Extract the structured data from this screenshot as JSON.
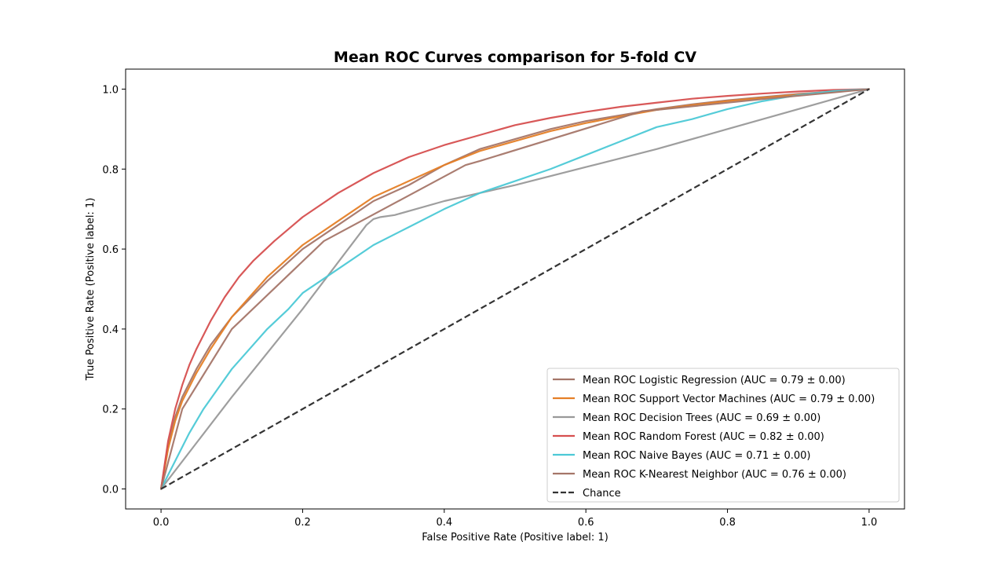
{
  "chart_data": {
    "type": "line",
    "title": "Mean ROC Curves comparison for 5-fold CV",
    "xlabel": "False Positive Rate (Positive label: 1)",
    "ylabel": "True Positive Rate (Positive label: 1)",
    "xlim": [
      -0.05,
      1.05
    ],
    "ylim": [
      -0.05,
      1.05
    ],
    "xticks": [
      "0.0",
      "0.2",
      "0.4",
      "0.6",
      "0.8",
      "1.0"
    ],
    "yticks": [
      "0.0",
      "0.2",
      "0.4",
      "0.6",
      "0.8",
      "1.0"
    ],
    "grid": false,
    "legend_position": "lower-right",
    "series": [
      {
        "name": "Mean ROC Logistic Regression (AUC = 0.79 ± 0.00)",
        "color": "#a57669",
        "dash": "solid",
        "x": [
          0,
          0.01,
          0.02,
          0.03,
          0.05,
          0.07,
          0.1,
          0.15,
          0.2,
          0.25,
          0.3,
          0.35,
          0.4,
          0.45,
          0.5,
          0.55,
          0.6,
          0.65,
          0.7,
          0.75,
          0.8,
          0.85,
          0.9,
          0.95,
          1.0
        ],
        "y": [
          0,
          0.11,
          0.18,
          0.23,
          0.3,
          0.36,
          0.43,
          0.52,
          0.6,
          0.66,
          0.72,
          0.76,
          0.81,
          0.85,
          0.875,
          0.9,
          0.92,
          0.935,
          0.95,
          0.962,
          0.972,
          0.98,
          0.988,
          0.994,
          1.0
        ]
      },
      {
        "name": "Mean ROC Support Vector Machines (AUC = 0.79 ± 0.00)",
        "color": "#e57f27",
        "dash": "solid",
        "x": [
          0,
          0.01,
          0.02,
          0.03,
          0.05,
          0.07,
          0.1,
          0.15,
          0.2,
          0.25,
          0.3,
          0.35,
          0.4,
          0.45,
          0.5,
          0.55,
          0.6,
          0.65,
          0.7,
          0.75,
          0.8,
          0.85,
          0.9,
          0.95,
          1.0
        ],
        "y": [
          0,
          0.1,
          0.17,
          0.22,
          0.29,
          0.35,
          0.43,
          0.53,
          0.61,
          0.67,
          0.73,
          0.77,
          0.81,
          0.845,
          0.87,
          0.895,
          0.915,
          0.932,
          0.948,
          0.96,
          0.97,
          0.978,
          0.986,
          0.993,
          1.0
        ]
      },
      {
        "name": "Mean ROC Decision Trees (AUC = 0.69 ± 0.00)",
        "color": "#999999",
        "dash": "solid",
        "x": [
          0,
          0.1,
          0.2,
          0.29,
          0.3,
          0.31,
          0.33,
          0.4,
          0.5,
          0.6,
          0.7,
          0.8,
          0.9,
          1.0
        ],
        "y": [
          0,
          0.23,
          0.45,
          0.66,
          0.675,
          0.68,
          0.685,
          0.72,
          0.76,
          0.805,
          0.85,
          0.9,
          0.95,
          1.0
        ]
      },
      {
        "name": "Mean ROC Random Forest (AUC = 0.82 ± 0.00)",
        "color": "#d64f4f",
        "dash": "solid",
        "x": [
          0,
          0.01,
          0.02,
          0.03,
          0.04,
          0.05,
          0.07,
          0.09,
          0.11,
          0.13,
          0.16,
          0.2,
          0.25,
          0.3,
          0.35,
          0.4,
          0.45,
          0.5,
          0.55,
          0.6,
          0.65,
          0.7,
          0.75,
          0.8,
          0.85,
          0.9,
          0.95,
          1.0
        ],
        "y": [
          0,
          0.12,
          0.2,
          0.26,
          0.31,
          0.35,
          0.42,
          0.48,
          0.53,
          0.57,
          0.62,
          0.68,
          0.74,
          0.79,
          0.83,
          0.86,
          0.885,
          0.91,
          0.928,
          0.943,
          0.956,
          0.966,
          0.976,
          0.983,
          0.989,
          0.994,
          0.998,
          1.0
        ]
      },
      {
        "name": "Mean ROC Naive Bayes (AUC = 0.71 ± 0.00)",
        "color": "#4cc9d6",
        "dash": "solid",
        "x": [
          0,
          0.02,
          0.04,
          0.06,
          0.08,
          0.1,
          0.12,
          0.15,
          0.18,
          0.2,
          0.25,
          0.3,
          0.35,
          0.4,
          0.45,
          0.5,
          0.55,
          0.6,
          0.65,
          0.7,
          0.75,
          0.8,
          0.85,
          0.9,
          0.95,
          1.0
        ],
        "y": [
          0,
          0.07,
          0.14,
          0.2,
          0.25,
          0.3,
          0.34,
          0.4,
          0.45,
          0.49,
          0.55,
          0.61,
          0.655,
          0.7,
          0.74,
          0.77,
          0.8,
          0.835,
          0.87,
          0.905,
          0.925,
          0.95,
          0.97,
          0.985,
          0.995,
          1.0
        ]
      },
      {
        "name": "Mean ROC K-Nearest Neighbor (AUC = 0.76 ± 0.00)",
        "color": "#a57669",
        "dash": "solid",
        "x": [
          0,
          0.03,
          0.1,
          0.23,
          0.43,
          0.45,
          0.68,
          0.7,
          0.85,
          1.0
        ],
        "y": [
          0,
          0.2,
          0.4,
          0.62,
          0.81,
          0.82,
          0.945,
          0.948,
          0.975,
          1.0
        ]
      },
      {
        "name": "Chance",
        "color": "#333333",
        "dash": "dashed",
        "x": [
          0,
          1
        ],
        "y": [
          0,
          1
        ]
      }
    ]
  }
}
